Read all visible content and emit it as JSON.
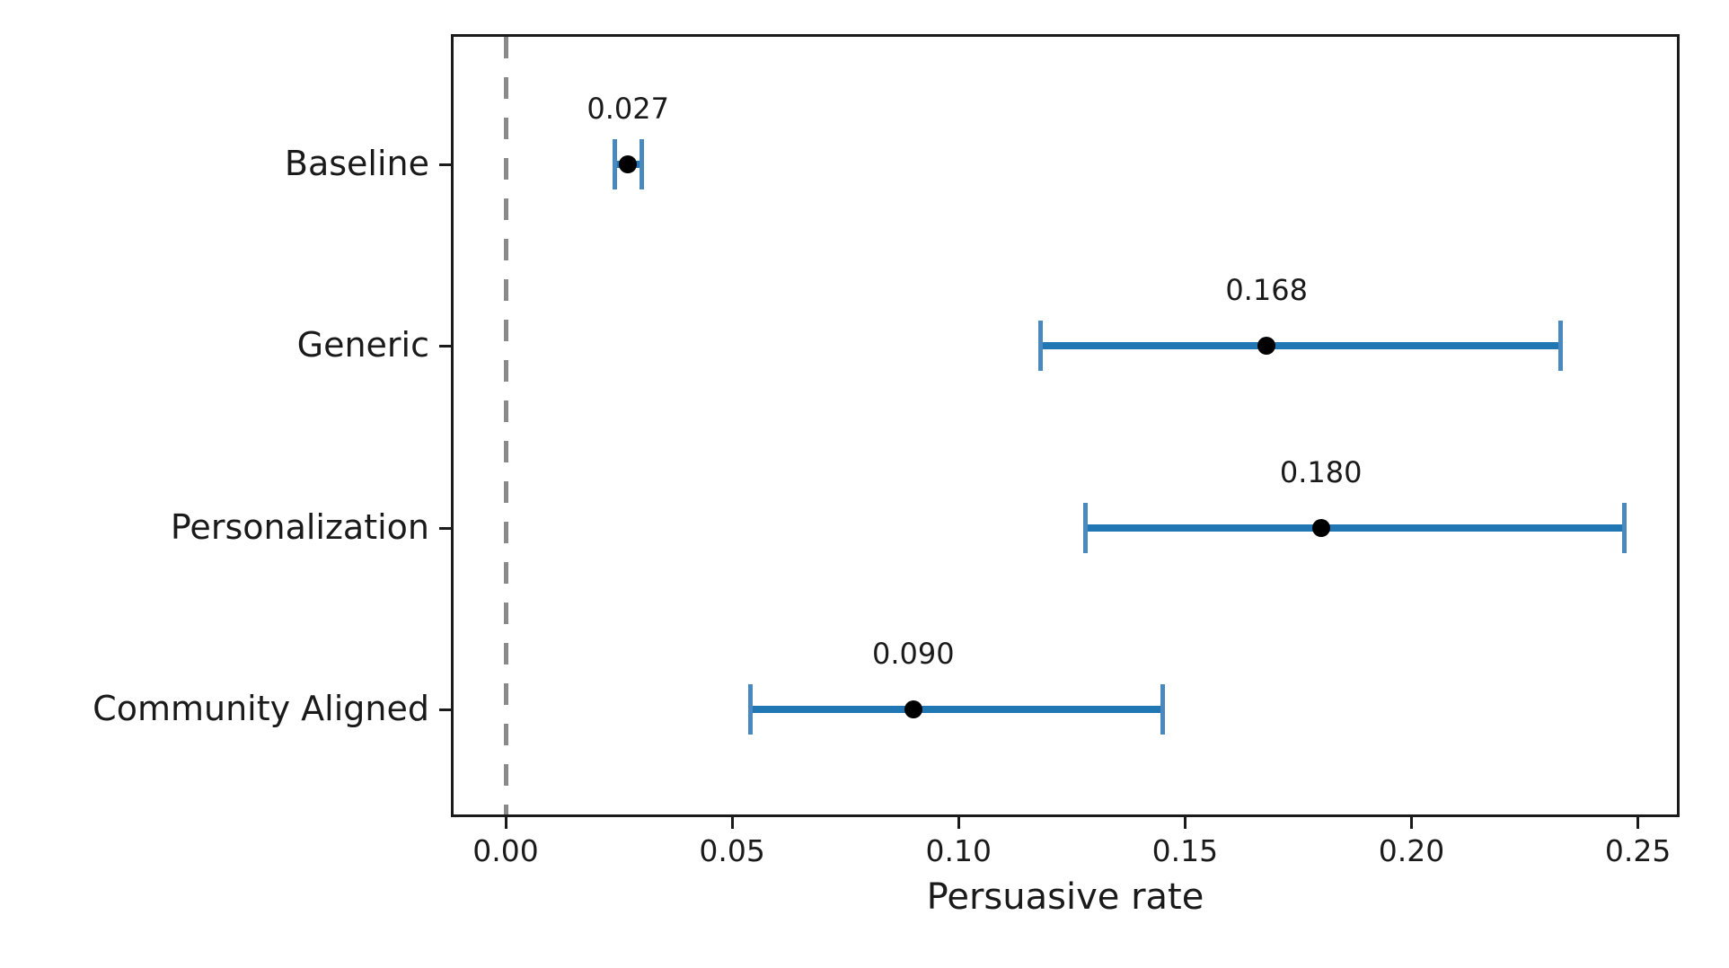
{
  "figure": {
    "background": "#ffffff"
  },
  "chart_data": {
    "type": "scatter",
    "subtype": "point-estimates-with-error-bars",
    "orientation": "horizontal",
    "title": "",
    "xlabel": "Persuasive rate",
    "ylabel": "",
    "categories": [
      "Baseline",
      "Generic",
      "Personalization",
      "Community Aligned"
    ],
    "series": [
      {
        "name": "Persuasive rate point estimates",
        "values": [
          0.027,
          0.168,
          0.18,
          0.09
        ],
        "ci_low": [
          0.024,
          0.118,
          0.128,
          0.054
        ],
        "ci_high": [
          0.03,
          0.233,
          0.247,
          0.145
        ],
        "point_labels": [
          "0.027",
          "0.168",
          "0.180",
          "0.090"
        ]
      }
    ],
    "x_ticks": [
      0.0,
      0.05,
      0.1,
      0.15,
      0.2,
      0.25
    ],
    "x_tick_labels": [
      "0.00",
      "0.05",
      "0.10",
      "0.15",
      "0.20",
      "0.25"
    ],
    "xlim": [
      -0.0121,
      0.2592
    ],
    "reference_line_x": 0.0,
    "grid": false,
    "legend": false,
    "colors": {
      "error_bar": "#2077b4",
      "error_bar_cap": "#4989bd",
      "point": "#000000",
      "reference_line": "#8a8a8a",
      "spine": "#1a1a1a",
      "text": "#1a1a1a"
    }
  }
}
